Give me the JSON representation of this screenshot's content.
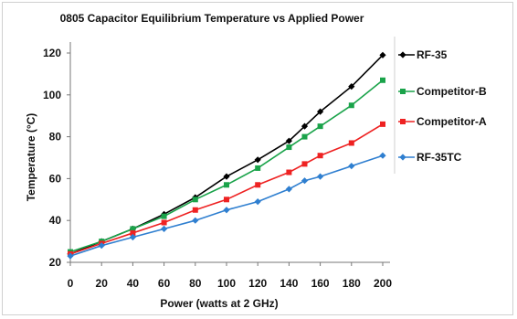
{
  "chart_data": {
    "type": "line",
    "title": "0805 Capacitor Equilibrium Temperature vs Applied Power",
    "xlabel": "Power (watts at 2 GHz)",
    "ylabel": "Temperature (°C)",
    "xlim": [
      0,
      200
    ],
    "ylim": [
      20,
      120
    ],
    "xticks": [
      0,
      20,
      40,
      60,
      80,
      100,
      120,
      140,
      160,
      180,
      200
    ],
    "yticks": [
      20,
      40,
      60,
      80,
      100,
      120
    ],
    "grid": false,
    "legend_position": "right",
    "series": [
      {
        "name": "RF-35",
        "color": "#000000",
        "marker": "diamond",
        "x": [
          0,
          20,
          40,
          60,
          80,
          100,
          120,
          140,
          150,
          160,
          180,
          200
        ],
        "y": [
          24,
          30,
          36,
          43,
          51,
          61,
          69,
          78,
          85,
          92,
          104,
          119
        ]
      },
      {
        "name": "Competitor-B",
        "color": "#1aa34a",
        "marker": "square",
        "x": [
          0,
          20,
          40,
          60,
          80,
          100,
          120,
          140,
          150,
          160,
          180,
          200
        ],
        "y": [
          25,
          30,
          36,
          42,
          50,
          57,
          65,
          75,
          80,
          85,
          95,
          107
        ]
      },
      {
        "name": "Competitor-A",
        "color": "#ee2222",
        "marker": "square",
        "x": [
          0,
          20,
          40,
          60,
          80,
          100,
          120,
          140,
          150,
          160,
          180,
          200
        ],
        "y": [
          24,
          29,
          34,
          39,
          45,
          50,
          57,
          63,
          67,
          71,
          77,
          86
        ]
      },
      {
        "name": "RF-35TC",
        "color": "#2f7fd0",
        "marker": "diamond",
        "x": [
          0,
          20,
          40,
          60,
          80,
          100,
          120,
          140,
          150,
          160,
          180,
          200
        ],
        "y": [
          23,
          28,
          32,
          36,
          40,
          45,
          49,
          55,
          59,
          61,
          66,
          71
        ]
      }
    ]
  }
}
